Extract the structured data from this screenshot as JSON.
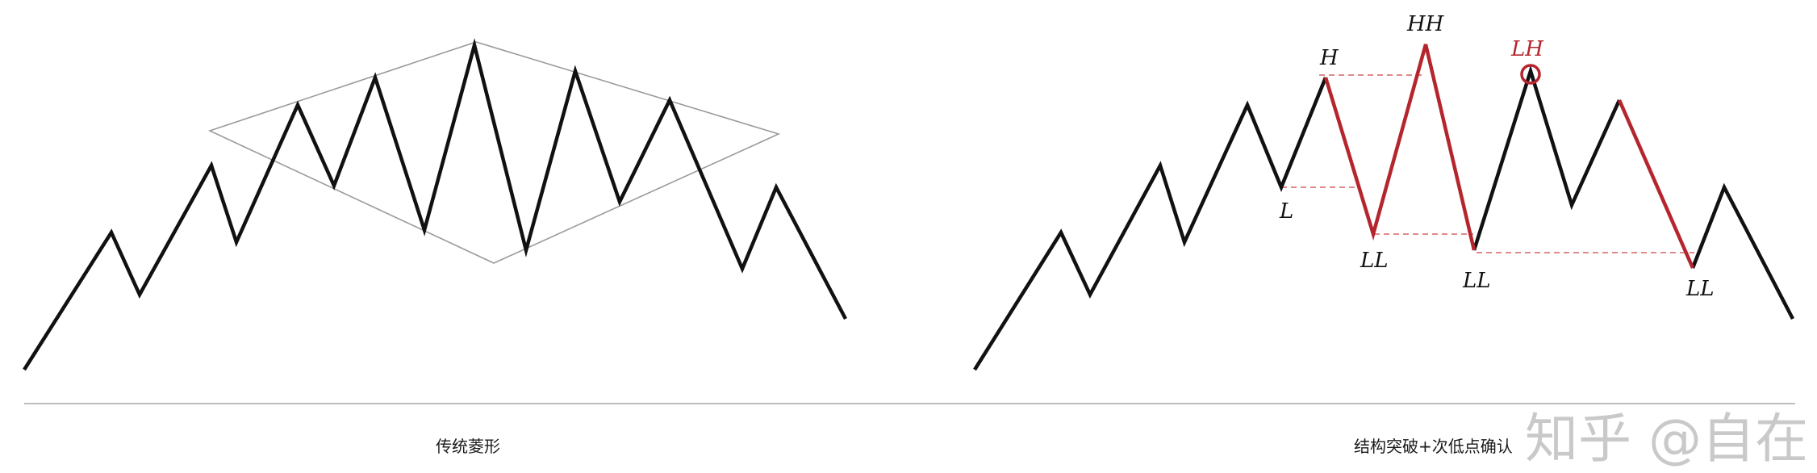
{
  "captions": {
    "left": "传统菱形",
    "right": "结构突破+次低点确认"
  },
  "watermark": "知乎 @自在",
  "right_labels": {
    "H": "H",
    "L": "L",
    "HH": "HH",
    "LH": "LH",
    "LL_1": "LL",
    "LL_2": "LL",
    "LL_3": "LL"
  },
  "colors": {
    "line": "#111111",
    "highlight": "#b5252e",
    "dashed": "#e08a8a",
    "diamond": "#9a9a9a",
    "divider": "#bdbdbd"
  }
}
